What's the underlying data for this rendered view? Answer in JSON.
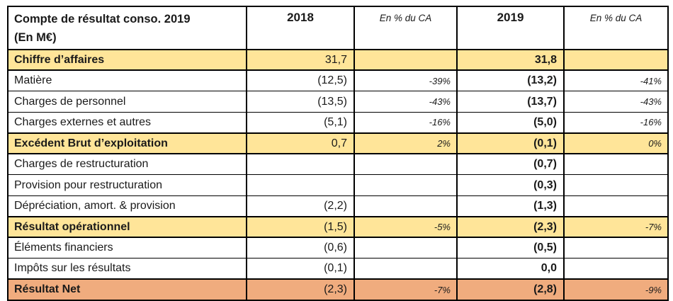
{
  "table": {
    "header": {
      "title_line1": "Compte de résultat conso. 2019",
      "title_line2": "(En M€)",
      "col_2018": "2018",
      "col_pct_2018": "En % du CA",
      "col_2019": "2019",
      "col_pct_2019": "En % du CA"
    },
    "rows": [
      {
        "label": "Chiffre d’affaires",
        "v2018": "31,7",
        "pct2018": "",
        "v2019": "31,8",
        "pct2019": "",
        "style": "yellow"
      },
      {
        "label": "Matière",
        "v2018": "(12,5)",
        "pct2018": "-39%",
        "v2019": "(13,2)",
        "pct2019": "-41%",
        "style": "normal"
      },
      {
        "label": "Charges de personnel",
        "v2018": "(13,5)",
        "pct2018": "-43%",
        "v2019": "(13,7)",
        "pct2019": "-43%",
        "style": "normal"
      },
      {
        "label": "Charges externes et autres",
        "v2018": "(5,1)",
        "pct2018": "-16%",
        "v2019": "(5,0)",
        "pct2019": "-16%",
        "style": "normal"
      },
      {
        "label": "Excédent Brut d’exploitation",
        "v2018": "0,7",
        "pct2018": "2%",
        "v2019": "(0,1)",
        "pct2019": "0%",
        "style": "yellow"
      },
      {
        "label": "Charges de restructuration",
        "v2018": "",
        "pct2018": "",
        "v2019": "(0,7)",
        "pct2019": "",
        "style": "normal"
      },
      {
        "label": "Provision pour restructuration",
        "v2018": "",
        "pct2018": "",
        "v2019": "(0,3)",
        "pct2019": "",
        "style": "normal"
      },
      {
        "label": "Dépréciation, amort. & provision",
        "v2018": "(2,2)",
        "pct2018": "",
        "v2019": "(1,3)",
        "pct2019": "",
        "style": "normal"
      },
      {
        "label": "Résultat opérationnel",
        "v2018": "(1,5)",
        "pct2018": "-5%",
        "v2019": "(2,3)",
        "pct2019": "-7%",
        "style": "yellow"
      },
      {
        "label": "Éléments financiers",
        "v2018": "(0,6)",
        "pct2018": "",
        "v2019": "(0,5)",
        "pct2019": "",
        "style": "normal"
      },
      {
        "label": "Impôts sur les résultats",
        "v2018": "(0,1)",
        "pct2018": "",
        "v2019": "0,0",
        "pct2019": "",
        "style": "normal"
      },
      {
        "label": "Résultat Net",
        "v2018": "(2,3)",
        "pct2018": "-7%",
        "v2019": "(2,8)",
        "pct2019": "-9%",
        "style": "orange"
      }
    ],
    "colors": {
      "highlight_yellow": "#FFE599",
      "highlight_orange": "#F0AC7E",
      "border": "#000000"
    }
  }
}
